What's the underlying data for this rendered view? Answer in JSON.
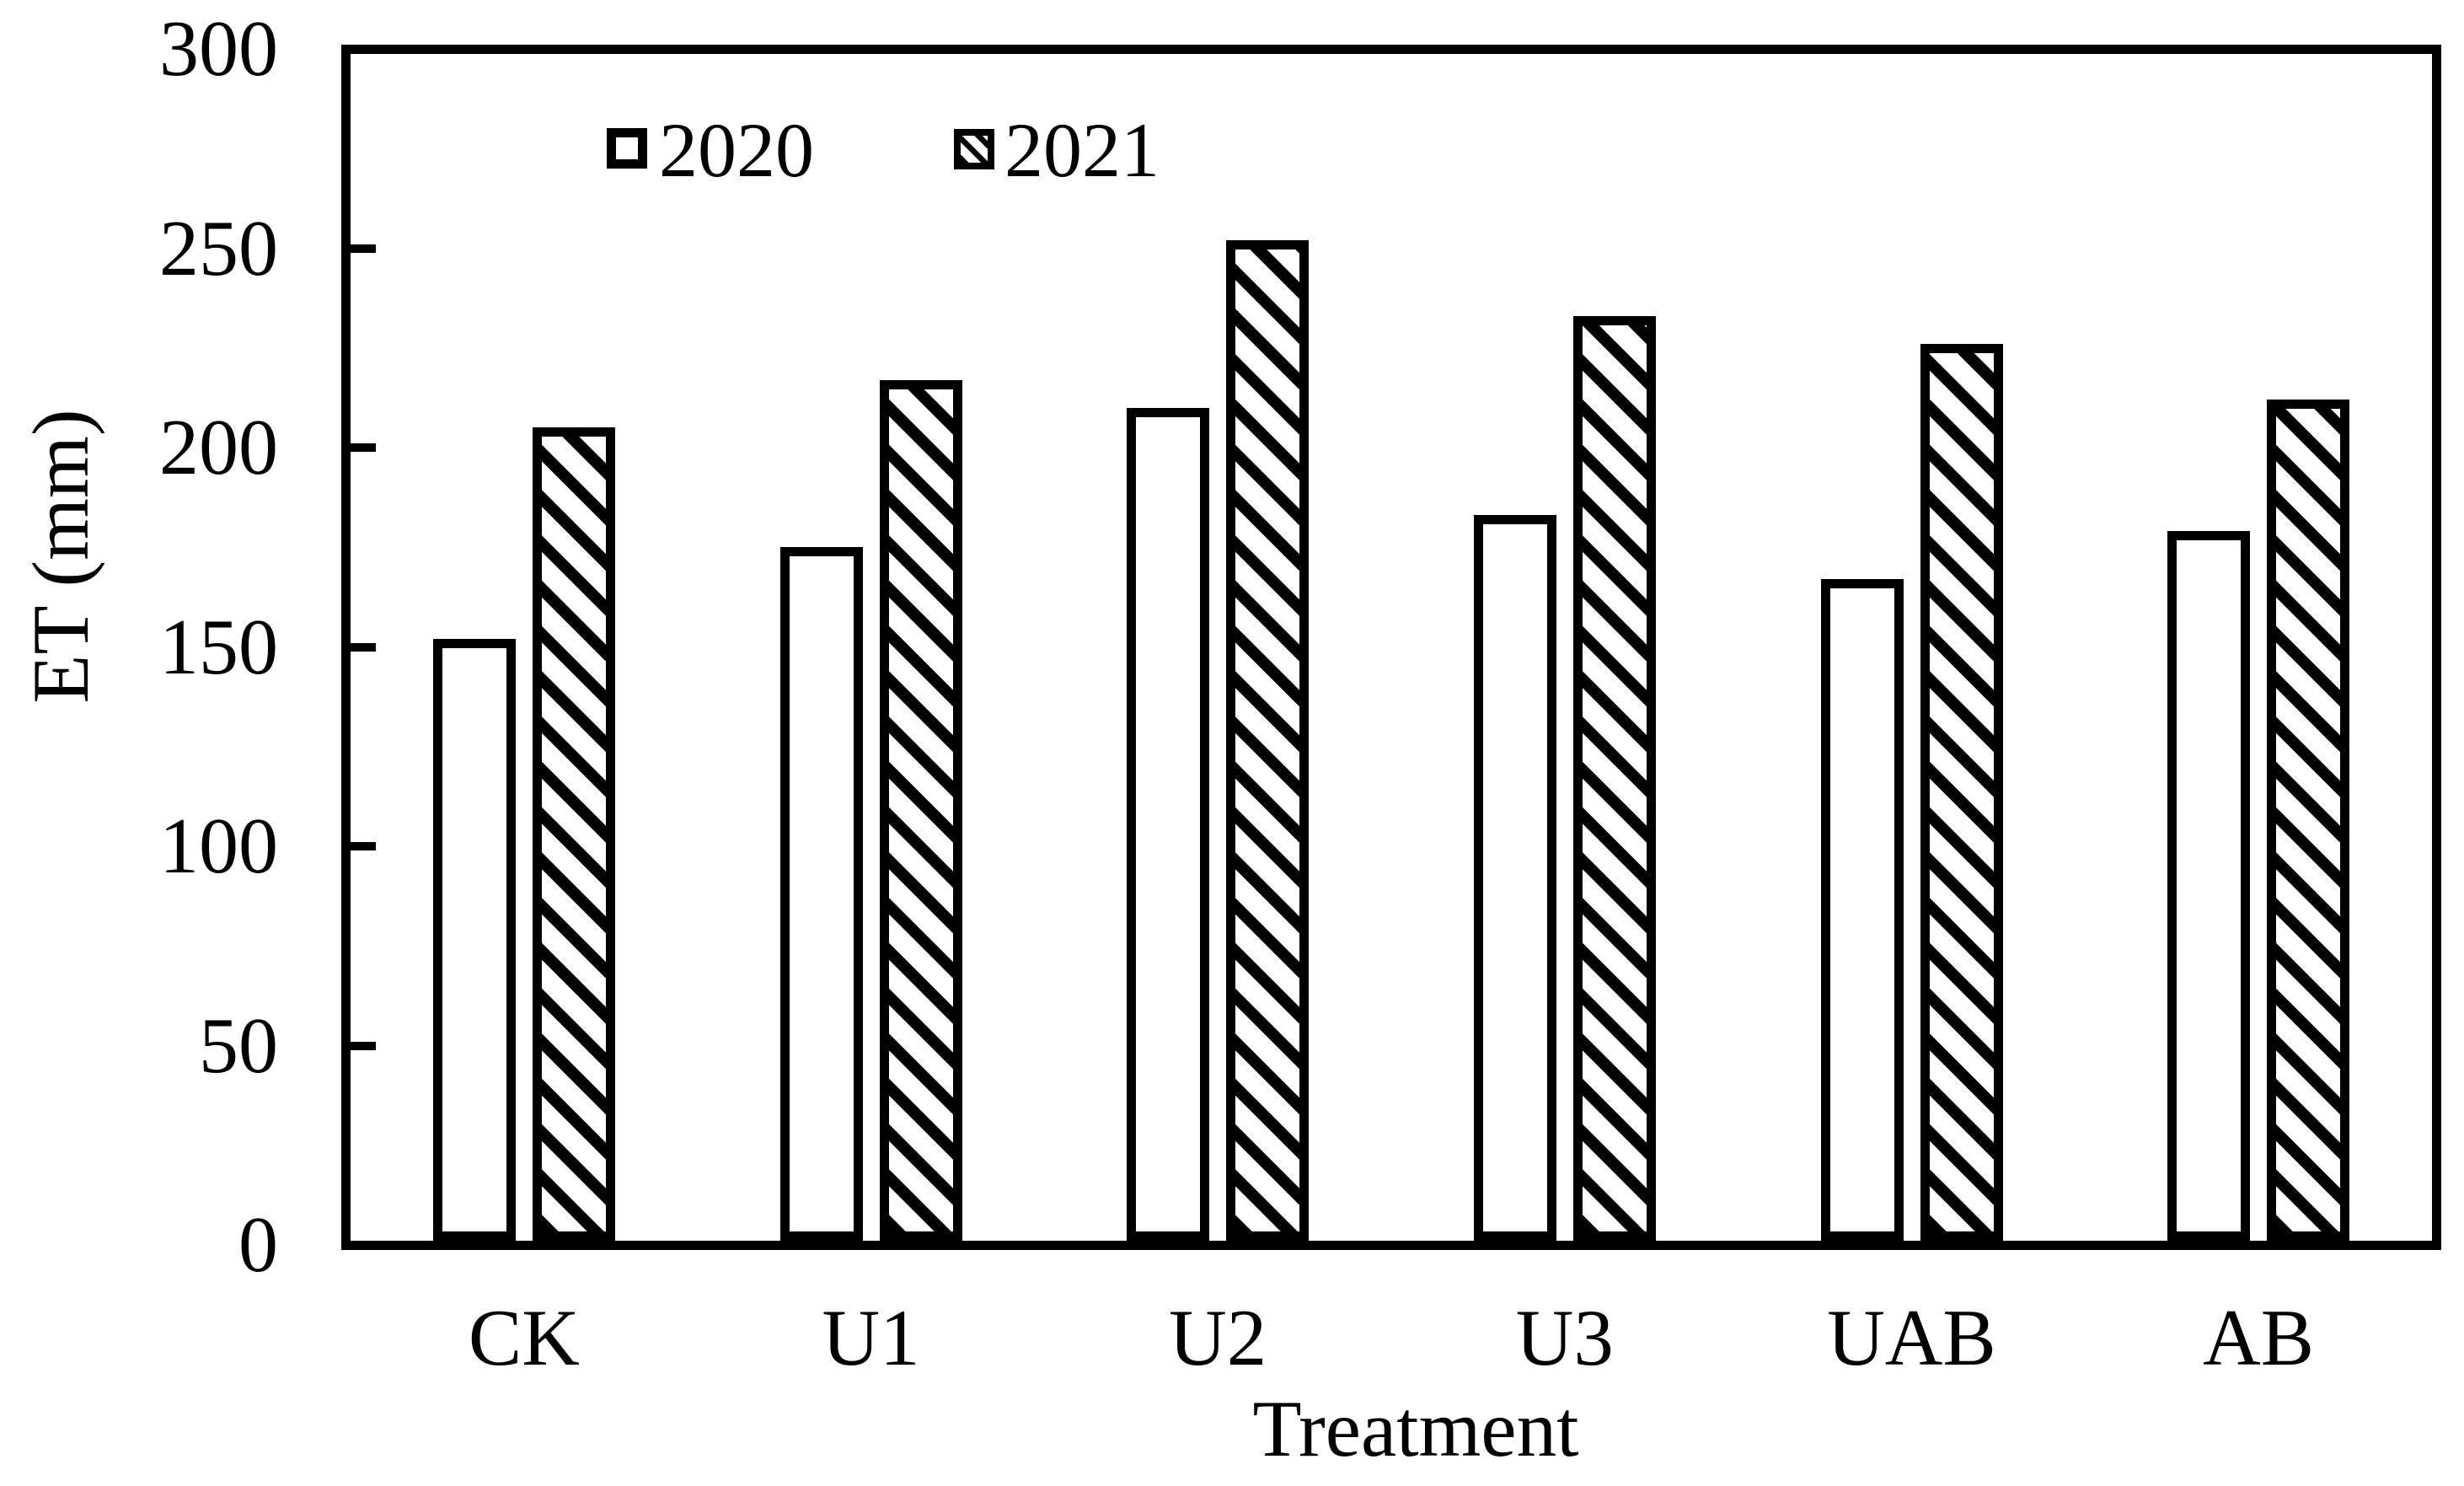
{
  "figure": {
    "background": "#ffffff",
    "ink": "#000000"
  },
  "chart_data": {
    "type": "bar",
    "title": "",
    "categories": [
      "CK",
      "U1",
      "U2",
      "U3",
      "UAB",
      "AB"
    ],
    "series": [
      {
        "name": "2020",
        "style": "open-white-bar",
        "values": [
          152,
          175,
          210,
          183,
          167,
          179
        ]
      },
      {
        "name": "2021",
        "style": "black-diagonal-hatched-bar",
        "values": [
          205,
          217,
          252,
          233,
          226,
          212
        ]
      }
    ],
    "xlabel": "Treatment",
    "ylabel": "ET (mm)",
    "ylim": [
      0,
      300
    ],
    "yticks": [
      0,
      50,
      100,
      150,
      200,
      250,
      300
    ],
    "grid": false,
    "legend_position": "inside-top-left",
    "hatch_direction": "backslash-diagonal"
  }
}
